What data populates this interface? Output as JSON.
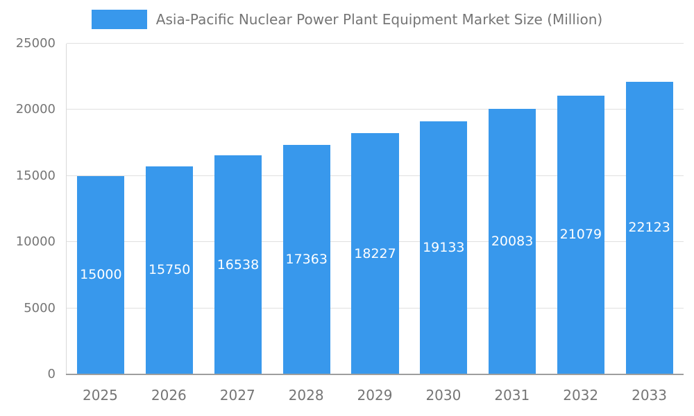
{
  "chart_data": {
    "type": "bar",
    "title": "Asia-Pacific Nuclear Power Plant Equipment Market Size (Million)",
    "categories": [
      "2025",
      "2026",
      "2027",
      "2028",
      "2029",
      "2030",
      "2031",
      "2032",
      "2033"
    ],
    "values": [
      15000,
      15750,
      16538,
      17363,
      18227,
      19133,
      20083,
      21079,
      22123
    ],
    "xlabel": "",
    "ylabel": "",
    "ylim": [
      0,
      25000
    ],
    "yticks": [
      0,
      5000,
      10000,
      15000,
      20000,
      25000
    ],
    "grid": true,
    "legend_position": "top",
    "colors": {
      "bar": "#3898ec",
      "bar_value_label": "#ffffff",
      "axis_text": "#757575",
      "gridline": "#e0e0e0",
      "axis_line": "#9e9e9e"
    }
  }
}
